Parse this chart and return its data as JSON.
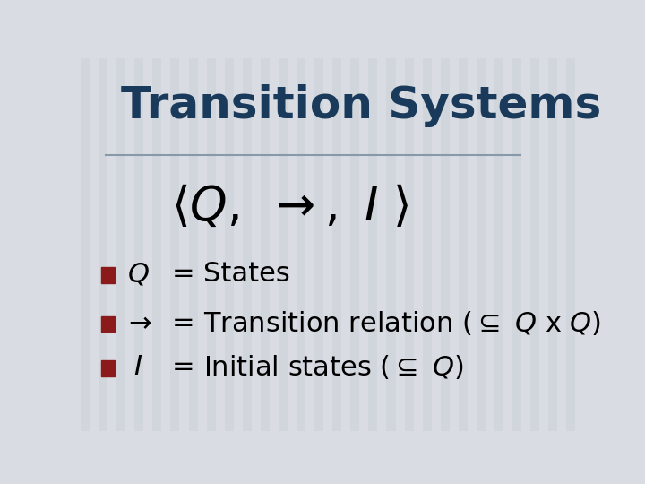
{
  "title": "Transition Systems",
  "title_color": "#1a3a5c",
  "title_fontsize": 36,
  "background_color": "#d9dde3",
  "line_color": "#8899aa",
  "math_fontsize": 38,
  "bullet_color": "#8b1a1a",
  "bullet_fontsize": 22,
  "stripe_color": "#c8cdd5",
  "stripe_alpha": 0.45,
  "subseteq": "⊆"
}
